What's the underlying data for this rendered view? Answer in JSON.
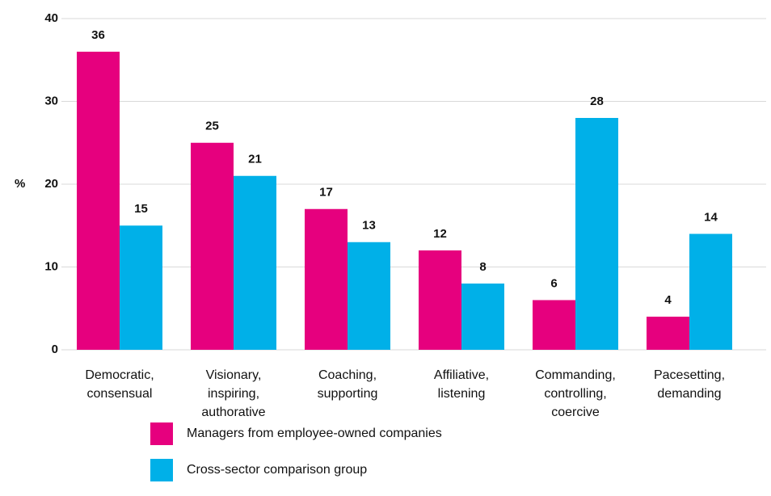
{
  "chart_data": {
    "type": "bar",
    "y_label": "%",
    "categories": [
      "Democratic, consensual",
      "Visionary, inspiring, authorative",
      "Coaching, supporting",
      "Affiliative, listening",
      "Commanding, controlling, coercive",
      "Pacesetting, demanding"
    ],
    "series": [
      {
        "name": "Managers from employee-owned companies",
        "color": "#e6007e",
        "values": [
          36,
          25,
          17,
          12,
          6,
          4
        ]
      },
      {
        "name": "Cross-sector comparison group",
        "color": "#00b0e8",
        "values": [
          15,
          21,
          13,
          8,
          28,
          14
        ]
      }
    ],
    "ylim": [
      0,
      40
    ],
    "yticks": [
      0,
      10,
      20,
      30,
      40
    ],
    "grid": true,
    "legend": "bottom"
  }
}
